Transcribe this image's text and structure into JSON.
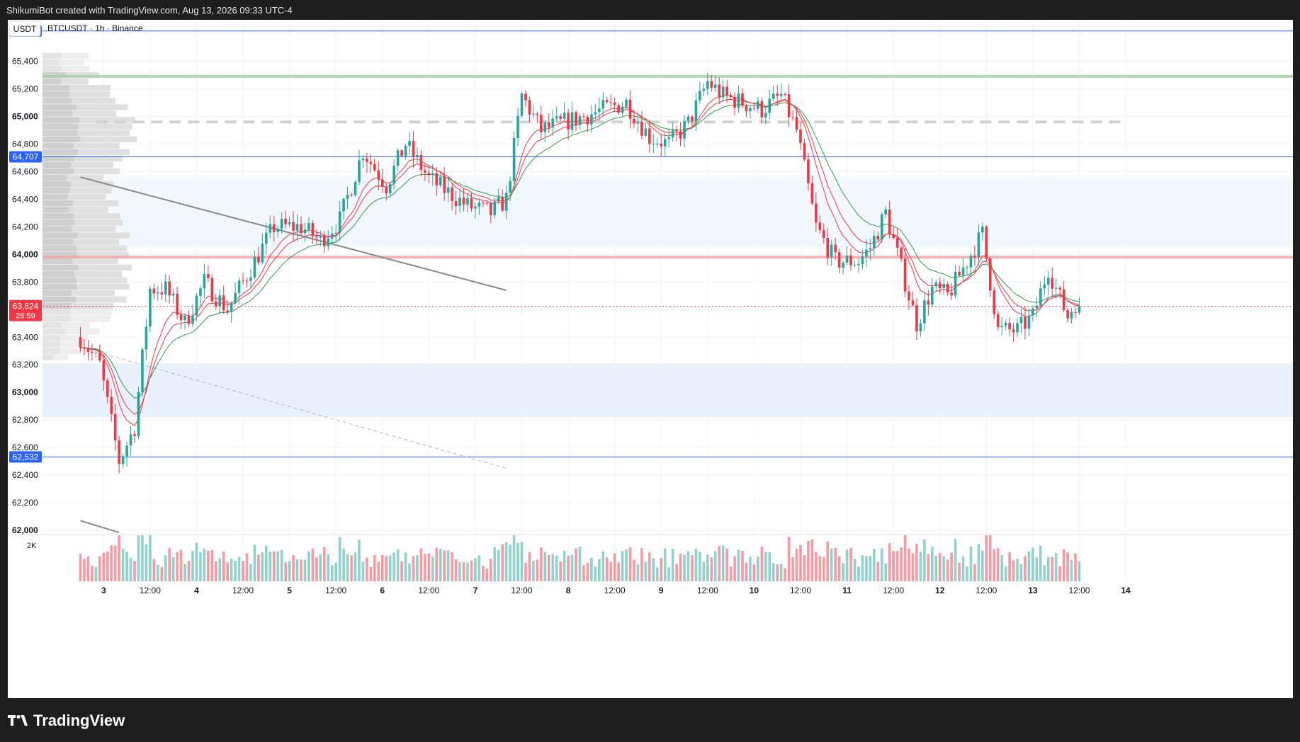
{
  "header": {
    "text": "ShikumiBot created with TradingView.com, Aug 13, 2026 09:33 UTC-4"
  },
  "footer": {
    "brand": "TradingView"
  },
  "chart_data": {
    "type": "candlestick",
    "title": "BTCUSDT · 1h · Binance",
    "currency_button": "USDT",
    "y_ticks": [
      "62,000",
      "62,200",
      "62,400",
      "62,600",
      "62,800",
      "63,000",
      "63,200",
      "63,400",
      "63,600",
      "63,800",
      "64,000",
      "64,200",
      "64,400",
      "64,600",
      "64,800",
      "65,000",
      "65,200",
      "65,400"
    ],
    "y_range": [
      61980,
      65700
    ],
    "x_labels": [
      {
        "t": 6,
        "label": "3"
      },
      {
        "t": 18,
        "label": "12:00"
      },
      {
        "t": 30,
        "label": "4"
      },
      {
        "t": 42,
        "label": "12:00"
      },
      {
        "t": 54,
        "label": "5"
      },
      {
        "t": 66,
        "label": "12:00"
      },
      {
        "t": 78,
        "label": "6"
      },
      {
        "t": 90,
        "label": "12:00"
      },
      {
        "t": 102,
        "label": "7"
      },
      {
        "t": 114,
        "label": "12:00"
      },
      {
        "t": 126,
        "label": "8"
      },
      {
        "t": 138,
        "label": "12:00"
      },
      {
        "t": 150,
        "label": "9"
      },
      {
        "t": 162,
        "label": "12:00"
      },
      {
        "t": 174,
        "label": "10"
      },
      {
        "t": 186,
        "label": "12:00"
      },
      {
        "t": 198,
        "label": "11"
      },
      {
        "t": 210,
        "label": "12:00"
      },
      {
        "t": 222,
        "label": "12"
      },
      {
        "t": 234,
        "label": "12:00"
      },
      {
        "t": 246,
        "label": "13"
      },
      {
        "t": 258,
        "label": "12:00"
      },
      {
        "t": 270,
        "label": "14"
      }
    ],
    "price_tags": {
      "levels": [
        {
          "value": 65619,
          "label": "65,619"
        },
        {
          "value": 64707,
          "label": "64,707"
        },
        {
          "value": 62532,
          "label": "62,532"
        }
      ],
      "current": {
        "value": 63624,
        "label": "63,624",
        "countdown": "26:59"
      }
    },
    "zones": [
      {
        "from": 64050,
        "to": 64570,
        "color": "#f3f7fe"
      },
      {
        "from": 62820,
        "to": 63210,
        "color": "#e9f1fc"
      }
    ],
    "level_lines": [
      {
        "value": 65290,
        "color": "#a5d6a7"
      },
      {
        "value": 63980,
        "color": "#f4a7ab"
      }
    ],
    "dashed_level": {
      "value": 64960,
      "from": 4,
      "to": 270
    },
    "trend_lines": [
      {
        "t1": 0,
        "p1": 64560,
        "t2": 110,
        "p2": 63740
      },
      {
        "t1": 0,
        "p1": 62070,
        "t2": 10,
        "p2": 61985
      }
    ],
    "dashed_trend": {
      "t1": 6,
      "p1": 63280,
      "t2": 110,
      "p2": 62450
    },
    "volume_label": "2K",
    "volume_max": 2600,
    "candle_anchors": [
      [
        0,
        63400
      ],
      [
        5,
        63200
      ],
      [
        10,
        62500
      ],
      [
        14,
        62750
      ],
      [
        18,
        63750
      ],
      [
        22,
        63750
      ],
      [
        27,
        63500
      ],
      [
        32,
        63800
      ],
      [
        38,
        63600
      ],
      [
        44,
        63900
      ],
      [
        50,
        64200
      ],
      [
        57,
        64200
      ],
      [
        62,
        64100
      ],
      [
        67,
        64250
      ],
      [
        73,
        64750
      ],
      [
        79,
        64500
      ],
      [
        84,
        64800
      ],
      [
        90,
        64550
      ],
      [
        95,
        64450
      ],
      [
        100,
        64350
      ],
      [
        106,
        64300
      ],
      [
        110,
        64400
      ],
      [
        114,
        65150
      ],
      [
        119,
        64900
      ],
      [
        124,
        64950
      ],
      [
        130,
        65000
      ],
      [
        135,
        65050
      ],
      [
        141,
        65100
      ],
      [
        147,
        64850
      ],
      [
        152,
        64800
      ],
      [
        157,
        64950
      ],
      [
        162,
        65250
      ],
      [
        166,
        65150
      ],
      [
        171,
        65100
      ],
      [
        176,
        65050
      ],
      [
        181,
        65150
      ],
      [
        185,
        64900
      ],
      [
        190,
        64200
      ],
      [
        195,
        63950
      ],
      [
        201,
        63950
      ],
      [
        204,
        64050
      ],
      [
        208,
        64300
      ],
      [
        212,
        63900
      ],
      [
        216,
        63500
      ],
      [
        220,
        63750
      ],
      [
        224,
        63700
      ],
      [
        228,
        63900
      ],
      [
        233,
        64150
      ],
      [
        237,
        63450
      ],
      [
        242,
        63450
      ],
      [
        246,
        63550
      ],
      [
        250,
        63900
      ],
      [
        252,
        63750
      ],
      [
        255,
        63550
      ],
      [
        258,
        63700
      ]
    ],
    "bull_color": "#26a69a",
    "bear_color": "#f23645",
    "ema_fast_color": "#f23645",
    "ema_slow_color": "#2e9f44"
  }
}
